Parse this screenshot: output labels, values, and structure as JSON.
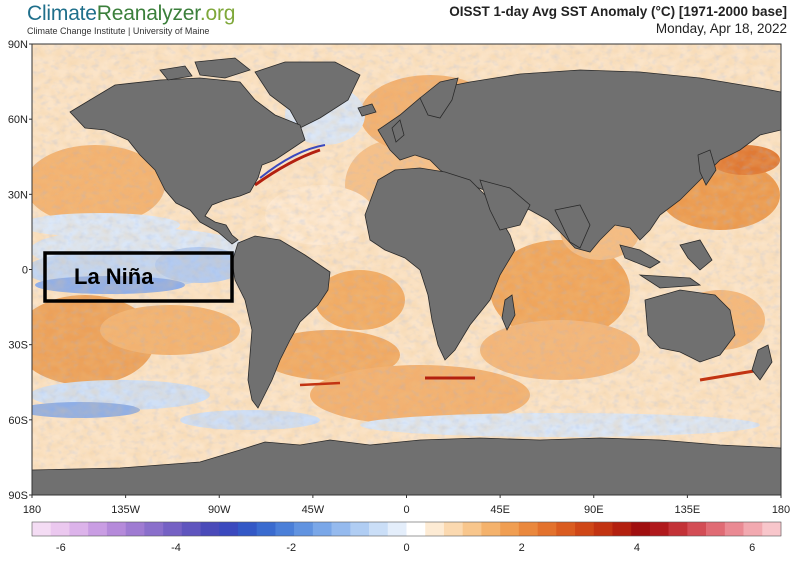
{
  "header": {
    "logo_climate": "Climate",
    "logo_reanalyzer": "Reanalyzer",
    "logo_org": ".org",
    "logo_subtitle": "Climate Change Institute | University of Maine",
    "title": "OISST 1-day Avg SST Anomaly (°C) [1971-2000 base]",
    "date": "Monday, Apr 18, 2022"
  },
  "map": {
    "lat_labels": [
      "90N",
      "60N",
      "30N",
      "0",
      "30S",
      "60S",
      "90S"
    ],
    "lat_values": [
      90,
      60,
      30,
      0,
      -30,
      -60,
      -90
    ],
    "lon_labels": [
      "180",
      "135W",
      "90W",
      "45W",
      "0",
      "45E",
      "90E",
      "135E",
      "180"
    ],
    "lon_values": [
      -180,
      -135,
      -90,
      -45,
      0,
      45,
      90,
      135,
      180
    ],
    "callout_text": "La Niña",
    "colors": {
      "land": "#707070",
      "land_border": "#2a2a2a",
      "warm_light": "#f7c38f",
      "warm": "#ec9a45",
      "warm_dark": "#c8400e",
      "cool_light": "#dbe7f7",
      "cool": "#9bb8ea",
      "cool_dark": "#3555c4"
    }
  },
  "colorbar": {
    "tick_labels": [
      "-6",
      "-4",
      "-2",
      "0",
      "2",
      "4",
      "6"
    ],
    "tick_values": [
      -6,
      -4,
      -2,
      0,
      2,
      4,
      6
    ],
    "colors": [
      "#f4dcf4",
      "#ebc8ef",
      "#dcb3ea",
      "#c99de3",
      "#b58ada",
      "#9f7bd2",
      "#8a6fcb",
      "#7561c4",
      "#5f55be",
      "#4a4ab9",
      "#3b49be",
      "#3358c6",
      "#3a6bcf",
      "#4b7fd8",
      "#6193e0",
      "#7aa7e8",
      "#95baee",
      "#b0cdf3",
      "#cadef7",
      "#e4eefb",
      "#ffffff",
      "#fdebd4",
      "#fbd9b0",
      "#f8c68c",
      "#f4b26c",
      "#f09e52",
      "#ea883d",
      "#e3722d",
      "#da5c20",
      "#cf4717",
      "#c23312",
      "#b3200f",
      "#a00f0f",
      "#b0191c",
      "#c33237",
      "#d34d55",
      "#e06b74",
      "#ea8a93",
      "#f2a9b0",
      "#f8c6cb"
    ]
  }
}
